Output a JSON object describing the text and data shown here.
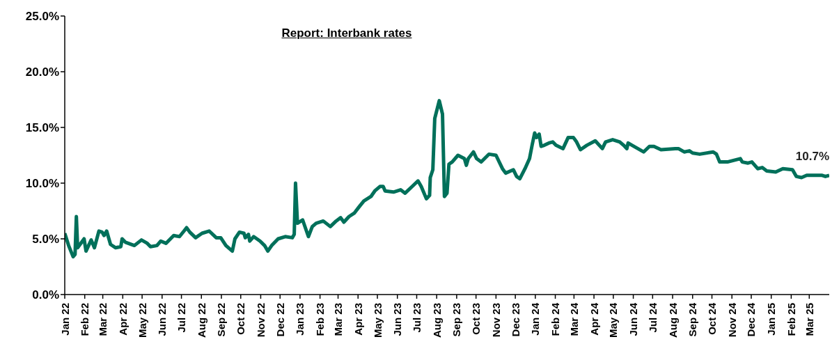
{
  "chart_data": {
    "type": "line",
    "title": "Report: Interbank rates",
    "x": [
      "2022-01-01",
      "2022-01-07",
      "2022-01-14",
      "2022-01-17",
      "2022-01-19",
      "2022-01-21",
      "2022-01-31",
      "2022-02-03",
      "2022-02-11",
      "2022-02-16",
      "2022-02-23",
      "2022-02-28",
      "2022-03-03",
      "2022-03-07",
      "2022-03-13",
      "2022-03-21",
      "2022-03-29",
      "2022-03-31",
      "2022-04-05",
      "2022-04-19",
      "2022-04-30",
      "2022-05-09",
      "2022-05-14",
      "2022-05-24",
      "2022-05-30",
      "2022-06-07",
      "2022-06-19",
      "2022-06-28",
      "2022-07-05",
      "2022-07-09",
      "2022-07-14",
      "2022-07-23",
      "2022-08-02",
      "2022-08-13",
      "2022-08-24",
      "2022-08-31",
      "2022-09-08",
      "2022-09-18",
      "2022-09-22",
      "2022-09-29",
      "2022-10-06",
      "2022-10-08",
      "2022-10-13",
      "2022-10-15",
      "2022-10-21",
      "2022-10-31",
      "2022-11-07",
      "2022-11-12",
      "2022-11-18",
      "2022-11-28",
      "2022-12-09",
      "2022-12-20",
      "2022-12-23",
      "2022-12-25",
      "2022-12-28",
      "2023-01-05",
      "2023-01-14",
      "2023-01-20",
      "2023-01-26",
      "2023-02-06",
      "2023-02-17",
      "2023-02-26",
      "2023-03-05",
      "2023-03-10",
      "2023-03-18",
      "2023-03-26",
      "2023-04-03",
      "2023-04-10",
      "2023-04-21",
      "2023-04-27",
      "2023-05-05",
      "2023-05-10",
      "2023-05-13",
      "2023-05-26",
      "2023-06-06",
      "2023-06-13",
      "2023-06-24",
      "2023-07-03",
      "2023-07-08",
      "2023-07-16",
      "2023-07-21",
      "2023-07-22",
      "2023-07-26",
      "2023-07-29",
      "2023-08-05",
      "2023-08-10",
      "2023-08-13",
      "2023-08-17",
      "2023-08-20",
      "2023-08-25",
      "2023-09-03",
      "2023-09-13",
      "2023-09-16",
      "2023-09-19",
      "2023-09-27",
      "2023-10-02",
      "2023-10-09",
      "2023-10-21",
      "2023-11-01",
      "2023-11-11",
      "2023-11-16",
      "2023-11-28",
      "2023-12-03",
      "2023-12-08",
      "2023-12-16",
      "2023-12-23",
      "2023-12-27",
      "2023-12-31",
      "2024-01-03",
      "2024-01-07",
      "2024-01-10",
      "2024-01-15",
      "2024-01-22",
      "2024-01-28",
      "2024-02-02",
      "2024-02-13",
      "2024-02-21",
      "2024-02-29",
      "2024-03-05",
      "2024-03-11",
      "2024-03-21",
      "2024-04-03",
      "2024-04-14",
      "2024-04-19",
      "2024-04-30",
      "2024-05-11",
      "2024-05-17",
      "2024-05-22",
      "2024-05-24",
      "2024-05-30",
      "2024-06-08",
      "2024-06-17",
      "2024-06-26",
      "2024-07-03",
      "2024-07-14",
      "2024-08-05",
      "2024-08-10",
      "2024-08-19",
      "2024-08-27",
      "2024-09-01",
      "2024-09-12",
      "2024-10-03",
      "2024-10-08",
      "2024-10-13",
      "2024-10-25",
      "2024-11-14",
      "2024-11-17",
      "2024-11-26",
      "2024-12-02",
      "2024-12-11",
      "2024-12-18",
      "2024-12-25",
      "2025-01-08",
      "2025-01-19",
      "2025-02-03",
      "2025-02-09",
      "2025-02-17",
      "2025-02-25",
      "2025-03-21",
      "2025-03-26",
      "2025-04-01"
    ],
    "series": [
      {
        "color": "#00705a",
        "values": [
          5.5,
          4.4,
          3.4,
          3.6,
          7.0,
          4.2,
          5.0,
          3.9,
          4.9,
          4.2,
          5.7,
          5.6,
          5.3,
          5.7,
          4.5,
          4.2,
          4.3,
          5.0,
          4.7,
          4.4,
          4.9,
          4.6,
          4.3,
          4.4,
          4.8,
          4.6,
          5.3,
          5.2,
          5.7,
          6.0,
          5.6,
          5.1,
          5.5,
          5.7,
          5.1,
          5.1,
          4.4,
          3.9,
          5.0,
          5.6,
          5.5,
          5.1,
          5.4,
          4.8,
          5.2,
          4.8,
          4.4,
          3.9,
          4.4,
          5.0,
          5.2,
          5.1,
          5.4,
          10.0,
          6.4,
          6.7,
          5.2,
          6.1,
          6.4,
          6.6,
          6.1,
          6.6,
          6.9,
          6.5,
          7.0,
          7.3,
          7.9,
          8.4,
          8.8,
          9.3,
          9.7,
          9.7,
          9.3,
          9.2,
          9.4,
          9.1,
          9.7,
          10.2,
          9.7,
          8.6,
          8.9,
          10.5,
          11.2,
          15.8,
          17.4,
          16.2,
          8.8,
          9.1,
          11.7,
          11.9,
          12.5,
          12.2,
          11.6,
          12.2,
          12.8,
          12.2,
          11.9,
          12.6,
          12.5,
          11.3,
          10.9,
          11.2,
          10.6,
          10.4,
          11.3,
          12.2,
          13.4,
          14.5,
          14.1,
          14.4,
          13.3,
          13.4,
          13.6,
          13.7,
          13.4,
          13.1,
          14.1,
          14.1,
          13.7,
          13.0,
          13.4,
          13.8,
          13.1,
          13.7,
          13.9,
          13.7,
          13.4,
          13.1,
          13.6,
          13.4,
          13.1,
          12.8,
          13.3,
          13.3,
          13.0,
          13.1,
          13.1,
          12.8,
          12.9,
          12.7,
          12.6,
          12.8,
          12.6,
          11.9,
          11.9,
          12.2,
          11.9,
          11.8,
          11.9,
          11.3,
          11.4,
          11.1,
          11.0,
          11.3,
          11.2,
          10.6,
          10.5,
          10.7,
          10.7,
          10.6,
          10.7
        ]
      }
    ],
    "xlim": [
      "2022-01-01",
      "2025-04-01"
    ],
    "xticks": [
      {
        "value": "2022-01-01",
        "label": "Jan 22"
      },
      {
        "value": "2022-02-01",
        "label": "Feb 22"
      },
      {
        "value": "2022-03-01",
        "label": "Mar 22"
      },
      {
        "value": "2022-04-01",
        "label": "Apr 22"
      },
      {
        "value": "2022-05-01",
        "label": "May 22"
      },
      {
        "value": "2022-06-01",
        "label": "Jun 22"
      },
      {
        "value": "2022-07-01",
        "label": "Jul 22"
      },
      {
        "value": "2022-08-01",
        "label": "Aug 22"
      },
      {
        "value": "2022-09-01",
        "label": "Sep 22"
      },
      {
        "value": "2022-10-01",
        "label": "Oct 22"
      },
      {
        "value": "2022-11-01",
        "label": "Nov 22"
      },
      {
        "value": "2022-12-01",
        "label": "Dec 22"
      },
      {
        "value": "2023-01-01",
        "label": "Jan 23"
      },
      {
        "value": "2023-02-01",
        "label": "Feb 23"
      },
      {
        "value": "2023-03-01",
        "label": "Mar 23"
      },
      {
        "value": "2023-04-01",
        "label": "Apr 23"
      },
      {
        "value": "2023-05-01",
        "label": "May 23"
      },
      {
        "value": "2023-06-01",
        "label": "Jun 23"
      },
      {
        "value": "2023-07-01",
        "label": "Jul 23"
      },
      {
        "value": "2023-08-01",
        "label": "Aug 23"
      },
      {
        "value": "2023-09-01",
        "label": "Sep 23"
      },
      {
        "value": "2023-10-01",
        "label": "Oct 23"
      },
      {
        "value": "2023-11-01",
        "label": "Nov 23"
      },
      {
        "value": "2023-12-01",
        "label": "Dec 23"
      },
      {
        "value": "2024-01-01",
        "label": "Jan 24"
      },
      {
        "value": "2024-02-01",
        "label": "Feb 24"
      },
      {
        "value": "2024-03-01",
        "label": "Mar 24"
      },
      {
        "value": "2024-04-01",
        "label": "Apr 24"
      },
      {
        "value": "2024-05-01",
        "label": "May 24"
      },
      {
        "value": "2024-06-01",
        "label": "Jun 24"
      },
      {
        "value": "2024-07-01",
        "label": "Jul 24"
      },
      {
        "value": "2024-08-01",
        "label": "Aug 24"
      },
      {
        "value": "2024-09-01",
        "label": "Sep 24"
      },
      {
        "value": "2024-10-01",
        "label": "Oct 24"
      },
      {
        "value": "2024-11-01",
        "label": "Nov 24"
      },
      {
        "value": "2024-12-01",
        "label": "Dec 24"
      },
      {
        "value": "2025-01-01",
        "label": "Jan 25"
      },
      {
        "value": "2025-02-01",
        "label": "Feb 25"
      },
      {
        "value": "2025-03-01",
        "label": "Mar 25"
      }
    ],
    "ylim": [
      0,
      25
    ],
    "yticks": [
      {
        "value": 0,
        "label": "0.0%"
      },
      {
        "value": 5,
        "label": "5.0%"
      },
      {
        "value": 10,
        "label": "10.0%"
      },
      {
        "value": 15,
        "label": "15.0%"
      },
      {
        "value": 20,
        "label": "20.0%"
      },
      {
        "value": 25,
        "label": "25.0%"
      }
    ],
    "annotations": [
      {
        "text": "10.7%",
        "x": "2025-04-01",
        "y": 10.7
      }
    ],
    "grid": false,
    "marker": "none",
    "line_style": "solid"
  }
}
